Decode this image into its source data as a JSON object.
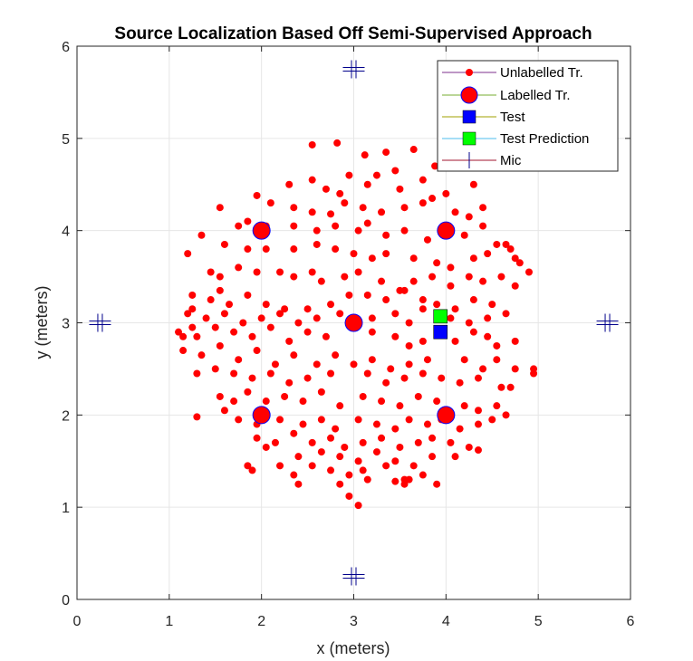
{
  "chart_data": {
    "type": "scatter",
    "title": "Source Localization Based Off Semi-Supervised Approach",
    "xlabel": "x (meters)",
    "ylabel": "y (meters)",
    "xlim": [
      0,
      6
    ],
    "ylim": [
      0,
      6
    ],
    "xticks": [
      "0",
      "1",
      "2",
      "3",
      "4",
      "5",
      "6"
    ],
    "yticks": [
      "0",
      "1",
      "2",
      "3",
      "4",
      "5",
      "6"
    ],
    "grid": true,
    "legend_position": "top-right",
    "colors": {
      "unlabelled": "#ff0000",
      "labelled_fill": "#ff0000",
      "labelled_edge": "#0000ff",
      "test": "#0000ff",
      "test_prediction": "#00ff00",
      "mic": "#00008b",
      "grid": "#e6e6e6",
      "legend_line_unlabelled": "#7e2f8e",
      "legend_line_labelled": "#77ac30",
      "legend_line_test": "#a0a000",
      "legend_line_pred": "#4dbeee",
      "legend_line_mic": "#a2142f"
    },
    "series": [
      {
        "name": "Unlabelled Tr.",
        "marker": "small-dot",
        "points": [
          [
            2.55,
            4.93
          ],
          [
            2.82,
            4.95
          ],
          [
            3.12,
            4.82
          ],
          [
            3.35,
            4.85
          ],
          [
            3.65,
            4.88
          ],
          [
            3.88,
            4.7
          ],
          [
            3.45,
            4.65
          ],
          [
            3.25,
            4.6
          ],
          [
            2.95,
            4.6
          ],
          [
            2.3,
            4.5
          ],
          [
            2.55,
            4.55
          ],
          [
            2.7,
            4.45
          ],
          [
            2.85,
            4.4
          ],
          [
            3.15,
            4.5
          ],
          [
            3.5,
            4.45
          ],
          [
            3.75,
            4.55
          ],
          [
            4.0,
            4.4
          ],
          [
            4.3,
            4.5
          ],
          [
            1.95,
            4.38
          ],
          [
            2.1,
            4.3
          ],
          [
            2.35,
            4.25
          ],
          [
            2.55,
            4.2
          ],
          [
            2.75,
            4.18
          ],
          [
            2.9,
            4.3
          ],
          [
            3.1,
            4.25
          ],
          [
            3.3,
            4.2
          ],
          [
            3.55,
            4.25
          ],
          [
            3.75,
            4.3
          ],
          [
            3.85,
            4.35
          ],
          [
            4.1,
            4.2
          ],
          [
            4.25,
            4.15
          ],
          [
            4.4,
            4.25
          ],
          [
            1.55,
            4.25
          ],
          [
            1.75,
            4.05
          ],
          [
            1.85,
            4.1
          ],
          [
            2.05,
            4.05
          ],
          [
            2.35,
            4.05
          ],
          [
            2.6,
            4.0
          ],
          [
            2.8,
            4.05
          ],
          [
            3.05,
            4.0
          ],
          [
            3.15,
            4.08
          ],
          [
            3.35,
            3.95
          ],
          [
            3.55,
            4.0
          ],
          [
            3.8,
            3.9
          ],
          [
            4.2,
            3.95
          ],
          [
            4.4,
            4.05
          ],
          [
            4.55,
            3.85
          ],
          [
            4.65,
            3.85
          ],
          [
            4.7,
            3.8
          ],
          [
            1.35,
            3.95
          ],
          [
            1.6,
            3.85
          ],
          [
            1.85,
            3.8
          ],
          [
            2.05,
            3.8
          ],
          [
            2.35,
            3.8
          ],
          [
            2.6,
            3.85
          ],
          [
            2.8,
            3.8
          ],
          [
            3.0,
            3.75
          ],
          [
            3.2,
            3.7
          ],
          [
            3.35,
            3.75
          ],
          [
            3.65,
            3.7
          ],
          [
            3.9,
            3.65
          ],
          [
            4.05,
            3.6
          ],
          [
            4.3,
            3.7
          ],
          [
            4.45,
            3.75
          ],
          [
            4.75,
            3.7
          ],
          [
            4.8,
            3.65
          ],
          [
            1.2,
            3.75
          ],
          [
            1.45,
            3.55
          ],
          [
            1.55,
            3.5
          ],
          [
            1.75,
            3.6
          ],
          [
            1.95,
            3.55
          ],
          [
            2.2,
            3.55
          ],
          [
            2.35,
            3.5
          ],
          [
            2.55,
            3.55
          ],
          [
            2.65,
            3.45
          ],
          [
            2.9,
            3.5
          ],
          [
            3.05,
            3.55
          ],
          [
            3.3,
            3.45
          ],
          [
            3.5,
            3.35
          ],
          [
            3.65,
            3.45
          ],
          [
            3.85,
            3.5
          ],
          [
            4.05,
            3.4
          ],
          [
            4.25,
            3.5
          ],
          [
            4.4,
            3.45
          ],
          [
            4.6,
            3.5
          ],
          [
            4.9,
            3.55
          ],
          [
            1.25,
            3.3
          ],
          [
            1.45,
            3.25
          ],
          [
            1.55,
            3.35
          ],
          [
            1.65,
            3.2
          ],
          [
            1.85,
            3.3
          ],
          [
            2.05,
            3.2
          ],
          [
            2.25,
            3.15
          ],
          [
            2.5,
            3.15
          ],
          [
            2.75,
            3.2
          ],
          [
            2.95,
            3.3
          ],
          [
            3.15,
            3.3
          ],
          [
            3.35,
            3.25
          ],
          [
            3.55,
            3.35
          ],
          [
            3.75,
            3.25
          ],
          [
            3.9,
            3.2
          ],
          [
            4.1,
            3.15
          ],
          [
            4.3,
            3.25
          ],
          [
            4.5,
            3.2
          ],
          [
            4.75,
            3.4
          ],
          [
            1.2,
            3.1
          ],
          [
            1.4,
            3.05
          ],
          [
            1.6,
            3.1
          ],
          [
            1.8,
            3.0
          ],
          [
            2.0,
            3.05
          ],
          [
            2.2,
            3.1
          ],
          [
            2.4,
            3.0
          ],
          [
            2.6,
            3.05
          ],
          [
            2.85,
            3.1
          ],
          [
            3.2,
            3.05
          ],
          [
            3.45,
            3.1
          ],
          [
            3.6,
            3.0
          ],
          [
            3.75,
            3.15
          ],
          [
            4.05,
            3.05
          ],
          [
            4.25,
            3.0
          ],
          [
            4.45,
            3.05
          ],
          [
            4.65,
            3.1
          ],
          [
            1.1,
            2.9
          ],
          [
            1.3,
            2.85
          ],
          [
            1.5,
            2.95
          ],
          [
            1.7,
            2.9
          ],
          [
            1.9,
            2.85
          ],
          [
            2.1,
            2.95
          ],
          [
            2.3,
            2.8
          ],
          [
            2.5,
            2.9
          ],
          [
            2.7,
            2.85
          ],
          [
            3.2,
            2.9
          ],
          [
            3.45,
            2.85
          ],
          [
            3.6,
            2.75
          ],
          [
            3.75,
            2.8
          ],
          [
            4.1,
            2.8
          ],
          [
            4.3,
            2.9
          ],
          [
            4.55,
            2.75
          ],
          [
            4.75,
            2.8
          ],
          [
            1.15,
            2.7
          ],
          [
            1.35,
            2.65
          ],
          [
            1.55,
            2.75
          ],
          [
            1.75,
            2.6
          ],
          [
            1.95,
            2.7
          ],
          [
            2.15,
            2.55
          ],
          [
            2.35,
            2.65
          ],
          [
            2.6,
            2.55
          ],
          [
            2.8,
            2.65
          ],
          [
            3.0,
            2.55
          ],
          [
            3.2,
            2.6
          ],
          [
            3.4,
            2.5
          ],
          [
            3.6,
            2.55
          ],
          [
            3.8,
            2.6
          ],
          [
            4.2,
            2.6
          ],
          [
            4.4,
            2.5
          ],
          [
            4.55,
            2.6
          ],
          [
            4.75,
            2.5
          ],
          [
            4.95,
            2.5
          ],
          [
            1.3,
            2.45
          ],
          [
            1.5,
            2.5
          ],
          [
            1.7,
            2.45
          ],
          [
            1.9,
            2.4
          ],
          [
            2.1,
            2.45
          ],
          [
            2.3,
            2.35
          ],
          [
            2.5,
            2.4
          ],
          [
            2.75,
            2.45
          ],
          [
            3.15,
            2.45
          ],
          [
            3.35,
            2.35
          ],
          [
            3.55,
            2.4
          ],
          [
            3.75,
            2.45
          ],
          [
            3.95,
            2.4
          ],
          [
            4.15,
            2.35
          ],
          [
            4.35,
            2.4
          ],
          [
            4.6,
            2.3
          ],
          [
            1.55,
            2.2
          ],
          [
            1.7,
            2.15
          ],
          [
            1.85,
            2.25
          ],
          [
            2.05,
            2.15
          ],
          [
            2.25,
            2.2
          ],
          [
            2.45,
            2.15
          ],
          [
            2.65,
            2.25
          ],
          [
            2.85,
            2.1
          ],
          [
            3.1,
            2.2
          ],
          [
            3.3,
            2.15
          ],
          [
            3.5,
            2.1
          ],
          [
            3.7,
            2.2
          ],
          [
            3.9,
            2.15
          ],
          [
            4.2,
            2.1
          ],
          [
            4.35,
            2.05
          ],
          [
            4.55,
            2.1
          ],
          [
            4.65,
            2.0
          ],
          [
            1.3,
            1.98
          ],
          [
            1.6,
            2.05
          ],
          [
            1.75,
            1.95
          ],
          [
            1.95,
            1.9
          ],
          [
            2.2,
            1.95
          ],
          [
            2.45,
            1.9
          ],
          [
            2.65,
            1.95
          ],
          [
            2.8,
            1.85
          ],
          [
            3.05,
            1.95
          ],
          [
            3.25,
            1.9
          ],
          [
            3.45,
            1.85
          ],
          [
            3.6,
            1.95
          ],
          [
            3.8,
            1.9
          ],
          [
            3.95,
            1.95
          ],
          [
            4.15,
            1.85
          ],
          [
            4.35,
            1.9
          ],
          [
            4.5,
            1.95
          ],
          [
            1.95,
            1.75
          ],
          [
            2.15,
            1.7
          ],
          [
            2.35,
            1.8
          ],
          [
            2.55,
            1.7
          ],
          [
            2.75,
            1.75
          ],
          [
            2.9,
            1.65
          ],
          [
            3.1,
            1.7
          ],
          [
            3.3,
            1.75
          ],
          [
            3.5,
            1.65
          ],
          [
            3.7,
            1.7
          ],
          [
            3.85,
            1.75
          ],
          [
            4.05,
            1.7
          ],
          [
            4.25,
            1.65
          ],
          [
            2.05,
            1.65
          ],
          [
            2.4,
            1.55
          ],
          [
            2.65,
            1.6
          ],
          [
            2.85,
            1.55
          ],
          [
            3.05,
            1.5
          ],
          [
            3.25,
            1.6
          ],
          [
            3.45,
            1.5
          ],
          [
            3.65,
            1.45
          ],
          [
            3.85,
            1.55
          ],
          [
            4.1,
            1.55
          ],
          [
            4.35,
            1.62
          ],
          [
            1.85,
            1.45
          ],
          [
            1.9,
            1.4
          ],
          [
            2.2,
            1.45
          ],
          [
            2.35,
            1.35
          ],
          [
            2.55,
            1.45
          ],
          [
            2.75,
            1.4
          ],
          [
            2.95,
            1.35
          ],
          [
            3.1,
            1.4
          ],
          [
            3.35,
            1.45
          ],
          [
            3.55,
            1.3
          ],
          [
            3.75,
            1.35
          ],
          [
            3.6,
            1.3
          ],
          [
            2.4,
            1.25
          ],
          [
            2.85,
            1.25
          ],
          [
            3.15,
            1.3
          ],
          [
            3.45,
            1.28
          ],
          [
            3.9,
            1.25
          ],
          [
            2.95,
            1.12
          ],
          [
            3.05,
            1.02
          ],
          [
            3.55,
            1.25
          ],
          [
            1.25,
            2.95
          ],
          [
            1.15,
            2.85
          ],
          [
            4.45,
            2.85
          ],
          [
            4.7,
            2.3
          ],
          [
            1.25,
            3.15
          ],
          [
            4.95,
            2.45
          ]
        ]
      },
      {
        "name": "Labelled Tr.",
        "marker": "large-circle",
        "points": [
          [
            2,
            4
          ],
          [
            4,
            4
          ],
          [
            3,
            3
          ],
          [
            2,
            2
          ],
          [
            4,
            2
          ]
        ]
      },
      {
        "name": "Test",
        "marker": "square",
        "points": [
          [
            3.94,
            2.9
          ]
        ]
      },
      {
        "name": "Test Prediction",
        "marker": "square",
        "points": [
          [
            3.94,
            3.07
          ]
        ]
      },
      {
        "name": "Mic",
        "marker": "plus",
        "points": [
          [
            3,
            5.75
          ],
          [
            0.25,
            3
          ],
          [
            5.75,
            3
          ],
          [
            3,
            0.25
          ]
        ]
      }
    ]
  }
}
